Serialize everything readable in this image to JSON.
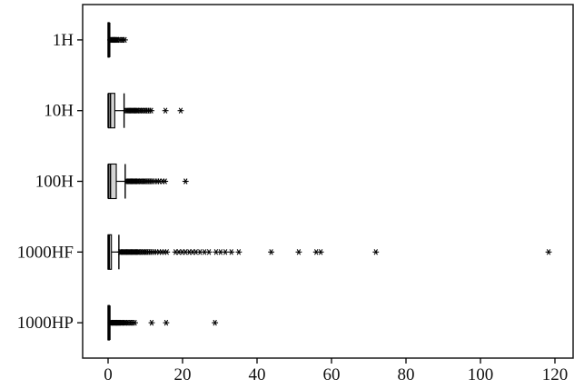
{
  "figure": {
    "title": "",
    "xlabel": "",
    "ylabel": ""
  },
  "colors": {
    "background": "#ffffff",
    "frame": "#1a1a1a",
    "box_fill": "#d4d4d4",
    "box_stroke": "#000000",
    "whisker": "#000000",
    "median": "#000000",
    "outlier": "#000000",
    "tick_text": "#111111"
  },
  "chart_data": {
    "type": "boxplot",
    "orientation": "horizontal",
    "title": "",
    "xlabel": "",
    "ylabel": "",
    "xlim": [
      -6.5,
      125
    ],
    "x_ticks": [
      0,
      20,
      40,
      60,
      80,
      100,
      120
    ],
    "grid": false,
    "legend": "none",
    "categories": [
      "1H",
      "10H",
      "100H",
      "1000HF",
      "1000HP"
    ],
    "series": [
      {
        "name": "1H",
        "whisker_low": 0,
        "q1": 0,
        "median": 0.15,
        "q3": 0.3,
        "whisker_high": 0.45,
        "outliers": [
          0.6,
          0.8,
          1.0,
          1.2,
          1.4,
          1.6,
          1.8,
          2.0,
          2.2,
          2.4,
          2.6,
          3.2,
          3.6,
          4.0,
          4.5
        ]
      },
      {
        "name": "10H",
        "whisker_low": 0,
        "q1": 0.1,
        "median": 0.6,
        "q3": 1.8,
        "whisker_high": 4.3,
        "outliers": [
          4.8,
          5.1,
          5.4,
          5.7,
          6.0,
          6.3,
          6.6,
          6.9,
          7.2,
          7.5,
          7.8,
          8.1,
          8.5,
          8.9,
          9.3,
          9.7,
          10.1,
          10.6,
          11.1,
          11.6,
          15.4,
          19.5
        ]
      },
      {
        "name": "100H",
        "whisker_low": 0,
        "q1": 0.1,
        "median": 0.6,
        "q3": 2.2,
        "whisker_high": 4.6,
        "outliers": [
          5.0,
          5.3,
          5.6,
          5.9,
          6.2,
          6.5,
          6.8,
          7.1,
          7.4,
          7.7,
          8.0,
          8.4,
          8.8,
          9.2,
          9.6,
          10.0,
          10.5,
          11.0,
          11.5,
          12.0,
          12.6,
          13.2,
          13.8,
          14.6,
          15.3,
          20.8
        ]
      },
      {
        "name": "1000HF",
        "whisker_low": 0,
        "q1": 0,
        "median": 0.3,
        "q3": 0.9,
        "whisker_high": 2.9,
        "outliers": [
          3.2,
          3.5,
          3.8,
          4.1,
          4.4,
          4.7,
          5.0,
          5.3,
          5.6,
          5.9,
          6.2,
          6.5,
          6.8,
          7.1,
          7.4,
          7.7,
          8.0,
          8.3,
          8.7,
          9.1,
          9.5,
          9.9,
          10.3,
          10.8,
          11.3,
          11.8,
          12.4,
          13.0,
          13.7,
          14.4,
          15.1,
          15.8,
          18.1,
          19.0,
          19.9,
          20.8,
          21.8,
          22.7,
          23.6,
          24.7,
          25.9,
          27.1,
          29.0,
          30.2,
          31.5,
          33.1,
          35.1,
          43.8,
          51.2,
          55.9,
          57.1,
          71.9,
          118.3
        ]
      },
      {
        "name": "1000HP",
        "whisker_low": 0,
        "q1": 0,
        "median": 0.15,
        "q3": 0.35,
        "whisker_high": 0.5,
        "outliers": [
          0.7,
          0.9,
          1.1,
          1.3,
          1.5,
          1.7,
          1.9,
          2.1,
          2.3,
          2.5,
          2.7,
          2.9,
          3.1,
          3.4,
          3.7,
          4.0,
          4.3,
          4.6,
          5.0,
          5.4,
          5.8,
          6.2,
          6.7,
          7.2,
          11.7,
          15.6,
          28.7
        ]
      }
    ]
  }
}
